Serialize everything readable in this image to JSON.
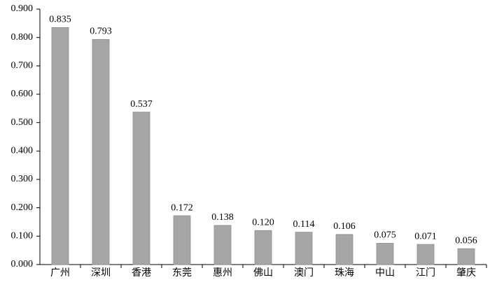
{
  "chart_data": {
    "type": "bar",
    "categories": [
      "广州",
      "深圳",
      "香港",
      "东莞",
      "惠州",
      "佛山",
      "澳门",
      "珠海",
      "中山",
      "江门",
      "肇庆"
    ],
    "values": [
      0.835,
      0.793,
      0.537,
      0.172,
      0.138,
      0.12,
      0.114,
      0.106,
      0.075,
      0.071,
      0.056
    ],
    "value_labels": [
      "0.835",
      "0.793",
      "0.537",
      "0.172",
      "0.138",
      "0.120",
      "0.114",
      "0.106",
      "0.075",
      "0.071",
      "0.056"
    ],
    "color": "#a6a6a6",
    "ylim": [
      0,
      0.9
    ],
    "yticks": [
      {
        "value": 0,
        "label": "0.000"
      },
      {
        "value": 0.1,
        "label": "0.100"
      },
      {
        "value": 0.2,
        "label": "0.200"
      },
      {
        "value": 0.3,
        "label": "0.300"
      },
      {
        "value": 0.4,
        "label": "0.400"
      },
      {
        "value": 0.5,
        "label": "0.500"
      },
      {
        "value": 0.6,
        "label": "0.600"
      },
      {
        "value": 0.7,
        "label": "0.700"
      },
      {
        "value": 0.8,
        "label": "0.800"
      },
      {
        "value": 0.9,
        "label": "0.900"
      }
    ],
    "grid": false
  }
}
